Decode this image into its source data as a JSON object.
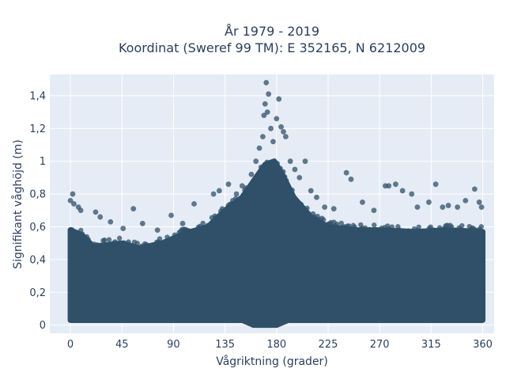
{
  "chart_data": {
    "type": "scatter",
    "title_line1": "År 1979 - 2019",
    "title_line2": "Koordinat (Sweref 99 TM): E 352165, N 6212009",
    "xlabel": "Vågriktning (grader)",
    "ylabel": "Signifikant våghöjd (m)",
    "xlim": [
      -18,
      370
    ],
    "ylim": [
      -0.05,
      1.53
    ],
    "x_ticks": [
      0,
      45,
      90,
      135,
      180,
      225,
      270,
      315,
      360
    ],
    "y_ticks": [
      {
        "value": 0,
        "label": "0"
      },
      {
        "value": 0.2,
        "label": "0,2"
      },
      {
        "value": 0.4,
        "label": "0,4"
      },
      {
        "value": 0.6,
        "label": "0,6"
      },
      {
        "value": 0.8,
        "label": "0,8"
      },
      {
        "value": 1.0,
        "label": "1"
      },
      {
        "value": 1.2,
        "label": "1,2"
      },
      {
        "value": 1.4,
        "label": "1,4"
      }
    ],
    "grid": true,
    "marker_color": "#2f5068",
    "dense_band": {
      "x_range": [
        0,
        360
      ],
      "y_min": 0.03,
      "y_min_near_180": 0.0,
      "upper_envelope": [
        {
          "x": 0,
          "y": 0.58
        },
        {
          "x": 10,
          "y": 0.55
        },
        {
          "x": 20,
          "y": 0.48
        },
        {
          "x": 45,
          "y": 0.5
        },
        {
          "x": 60,
          "y": 0.47
        },
        {
          "x": 80,
          "y": 0.5
        },
        {
          "x": 100,
          "y": 0.56
        },
        {
          "x": 120,
          "y": 0.6
        },
        {
          "x": 135,
          "y": 0.7
        },
        {
          "x": 150,
          "y": 0.78
        },
        {
          "x": 160,
          "y": 0.88
        },
        {
          "x": 170,
          "y": 0.98
        },
        {
          "x": 178,
          "y": 1.0
        },
        {
          "x": 185,
          "y": 0.92
        },
        {
          "x": 195,
          "y": 0.78
        },
        {
          "x": 210,
          "y": 0.66
        },
        {
          "x": 225,
          "y": 0.6
        },
        {
          "x": 250,
          "y": 0.58
        },
        {
          "x": 270,
          "y": 0.58
        },
        {
          "x": 300,
          "y": 0.57
        },
        {
          "x": 330,
          "y": 0.58
        },
        {
          "x": 360,
          "y": 0.57
        }
      ]
    },
    "outliers": [
      {
        "x": 0,
        "y": 0.76
      },
      {
        "x": 2,
        "y": 0.8
      },
      {
        "x": 3,
        "y": 0.74
      },
      {
        "x": 7,
        "y": 0.72
      },
      {
        "x": 9,
        "y": 0.7
      },
      {
        "x": 22,
        "y": 0.69
      },
      {
        "x": 26,
        "y": 0.66
      },
      {
        "x": 35,
        "y": 0.63
      },
      {
        "x": 46,
        "y": 0.59
      },
      {
        "x": 55,
        "y": 0.71
      },
      {
        "x": 63,
        "y": 0.62
      },
      {
        "x": 76,
        "y": 0.58
      },
      {
        "x": 88,
        "y": 0.67
      },
      {
        "x": 98,
        "y": 0.62
      },
      {
        "x": 108,
        "y": 0.74
      },
      {
        "x": 125,
        "y": 0.8
      },
      {
        "x": 130,
        "y": 0.82
      },
      {
        "x": 138,
        "y": 0.86
      },
      {
        "x": 145,
        "y": 0.8
      },
      {
        "x": 150,
        "y": 0.85
      },
      {
        "x": 158,
        "y": 0.92
      },
      {
        "x": 162,
        "y": 1.0
      },
      {
        "x": 165,
        "y": 1.08
      },
      {
        "x": 168,
        "y": 1.15
      },
      {
        "x": 169,
        "y": 1.28
      },
      {
        "x": 170,
        "y": 1.35
      },
      {
        "x": 171,
        "y": 1.48
      },
      {
        "x": 172,
        "y": 1.3
      },
      {
        "x": 173,
        "y": 1.41
      },
      {
        "x": 175,
        "y": 1.2
      },
      {
        "x": 177,
        "y": 1.12
      },
      {
        "x": 180,
        "y": 1.26
      },
      {
        "x": 182,
        "y": 1.38
      },
      {
        "x": 184,
        "y": 1.21
      },
      {
        "x": 186,
        "y": 1.18
      },
      {
        "x": 188,
        "y": 1.15
      },
      {
        "x": 192,
        "y": 1.0
      },
      {
        "x": 196,
        "y": 0.95
      },
      {
        "x": 200,
        "y": 0.9
      },
      {
        "x": 205,
        "y": 1.0
      },
      {
        "x": 210,
        "y": 0.82
      },
      {
        "x": 215,
        "y": 0.78
      },
      {
        "x": 222,
        "y": 0.72
      },
      {
        "x": 230,
        "y": 0.71
      },
      {
        "x": 241,
        "y": 0.93
      },
      {
        "x": 245,
        "y": 0.89
      },
      {
        "x": 255,
        "y": 0.75
      },
      {
        "x": 265,
        "y": 0.7
      },
      {
        "x": 275,
        "y": 0.85
      },
      {
        "x": 278,
        "y": 0.85
      },
      {
        "x": 284,
        "y": 0.86
      },
      {
        "x": 290,
        "y": 0.82
      },
      {
        "x": 298,
        "y": 0.8
      },
      {
        "x": 303,
        "y": 0.72
      },
      {
        "x": 313,
        "y": 0.75
      },
      {
        "x": 319,
        "y": 0.86
      },
      {
        "x": 325,
        "y": 0.72
      },
      {
        "x": 330,
        "y": 0.73
      },
      {
        "x": 338,
        "y": 0.72
      },
      {
        "x": 345,
        "y": 0.76
      },
      {
        "x": 353,
        "y": 0.83
      },
      {
        "x": 357,
        "y": 0.75
      },
      {
        "x": 359,
        "y": 0.72
      }
    ]
  }
}
